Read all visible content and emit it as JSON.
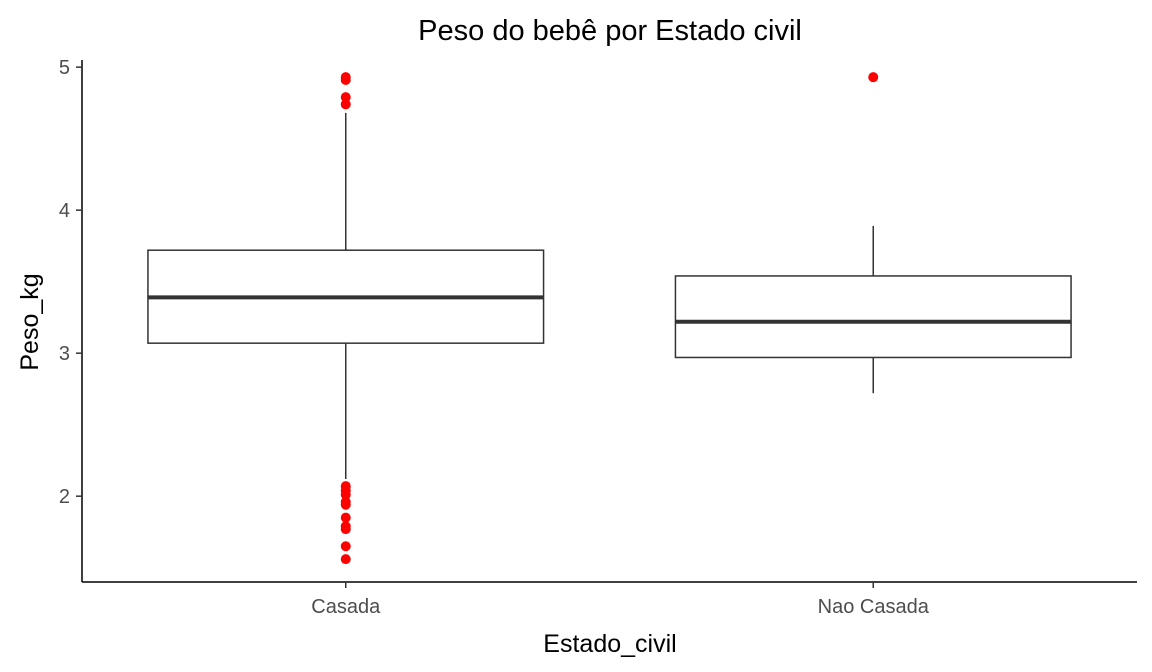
{
  "chart_data": {
    "type": "boxplot",
    "title": "Peso do bebê por Estado civil",
    "xlabel": "Estado_civil",
    "ylabel": "Peso_kg",
    "categories": [
      "Casada",
      "Nao Casada"
    ],
    "ylim": [
      1.4,
      5.05
    ],
    "y_ticks": [
      2,
      3,
      4,
      5
    ],
    "grid": false,
    "legend": "none",
    "outlier_color": "#ff0000",
    "box_color": "#333333",
    "boxes": [
      {
        "category": "Casada",
        "whisker_low": 2.12,
        "q1": 3.07,
        "median": 3.39,
        "q3": 3.72,
        "whisker_high": 4.68,
        "outliers": [
          4.93,
          4.91,
          4.79,
          4.74,
          2.07,
          2.04,
          2.01,
          1.96,
          1.94,
          1.85,
          1.79,
          1.77,
          1.65,
          1.56
        ]
      },
      {
        "category": "Nao Casada",
        "whisker_low": 2.72,
        "q1": 2.97,
        "median": 3.22,
        "q3": 3.54,
        "whisker_high": 3.89,
        "outliers": [
          4.93
        ]
      }
    ]
  }
}
